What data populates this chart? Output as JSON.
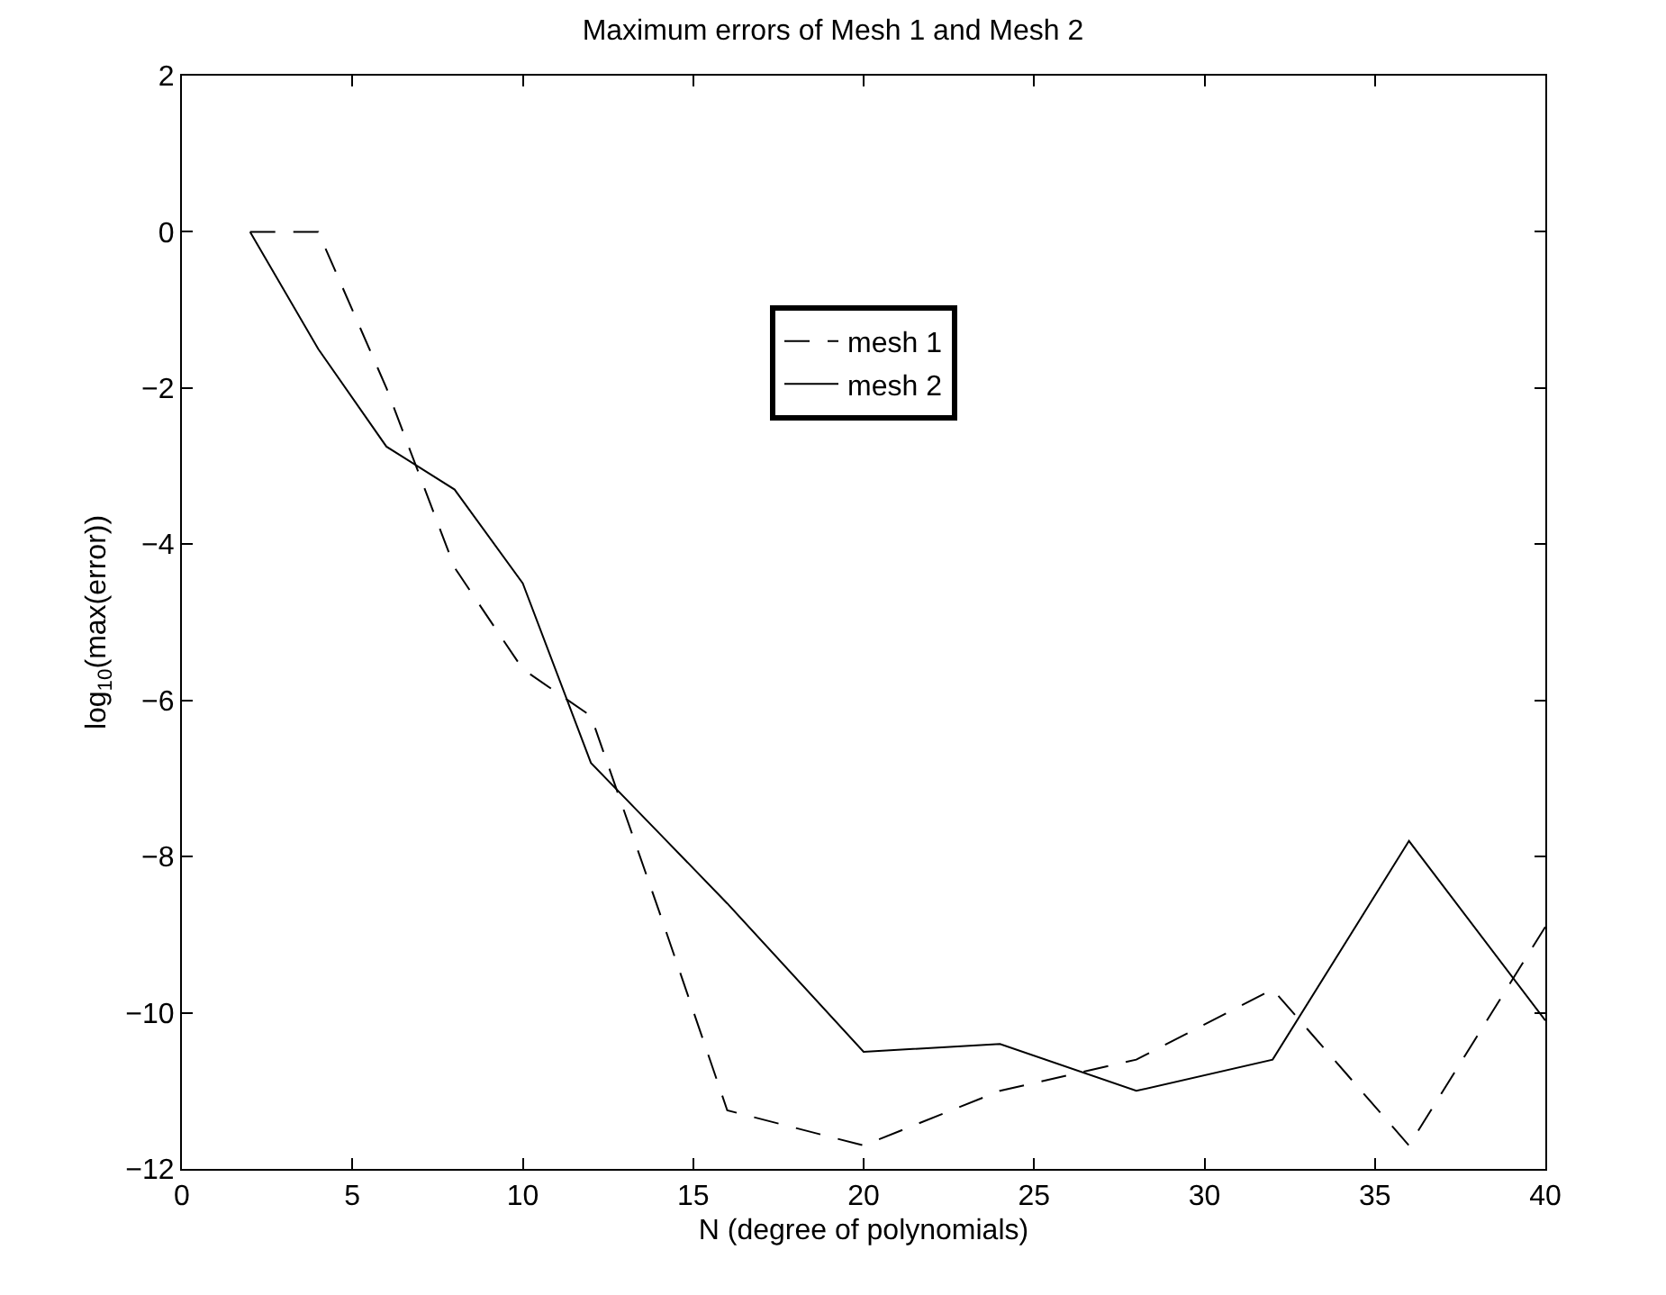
{
  "chart_data": {
    "type": "line",
    "title": "Maximum errors of Mesh 1 and Mesh 2",
    "xlabel": "N (degree of polynomials)",
    "ylabel": "log$_{10}$(max(error))",
    "x": [
      2,
      4,
      6,
      8,
      10,
      12,
      14,
      16,
      20,
      24,
      28,
      32,
      36,
      40
    ],
    "series": [
      {
        "name": "mesh 1",
        "color": "#000000",
        "line_style": "dashed",
        "values": [
          0,
          0,
          -2.0,
          -4.3,
          -5.6,
          -6.2,
          -8.7,
          -11.25,
          -11.7,
          -11.0,
          -10.6,
          -9.7,
          -11.7,
          -8.9
        ]
      },
      {
        "name": "mesh 2",
        "color": "#000000",
        "line_style": "solid",
        "values": [
          0,
          -1.5,
          -2.75,
          -3.3,
          -4.5,
          -6.8,
          -7.7,
          -8.6,
          -10.5,
          -10.4,
          -11.0,
          -10.6,
          -7.8,
          -10.1
        ]
      }
    ],
    "xlim": [
      0,
      40
    ],
    "xticks": [
      0,
      5,
      10,
      15,
      20,
      25,
      30,
      35,
      40
    ],
    "ylim": [
      -12,
      2
    ],
    "yticks": [
      -12,
      -10,
      -8,
      -6,
      -4,
      -2,
      0,
      2
    ],
    "legend": "top",
    "marker": "none"
  }
}
